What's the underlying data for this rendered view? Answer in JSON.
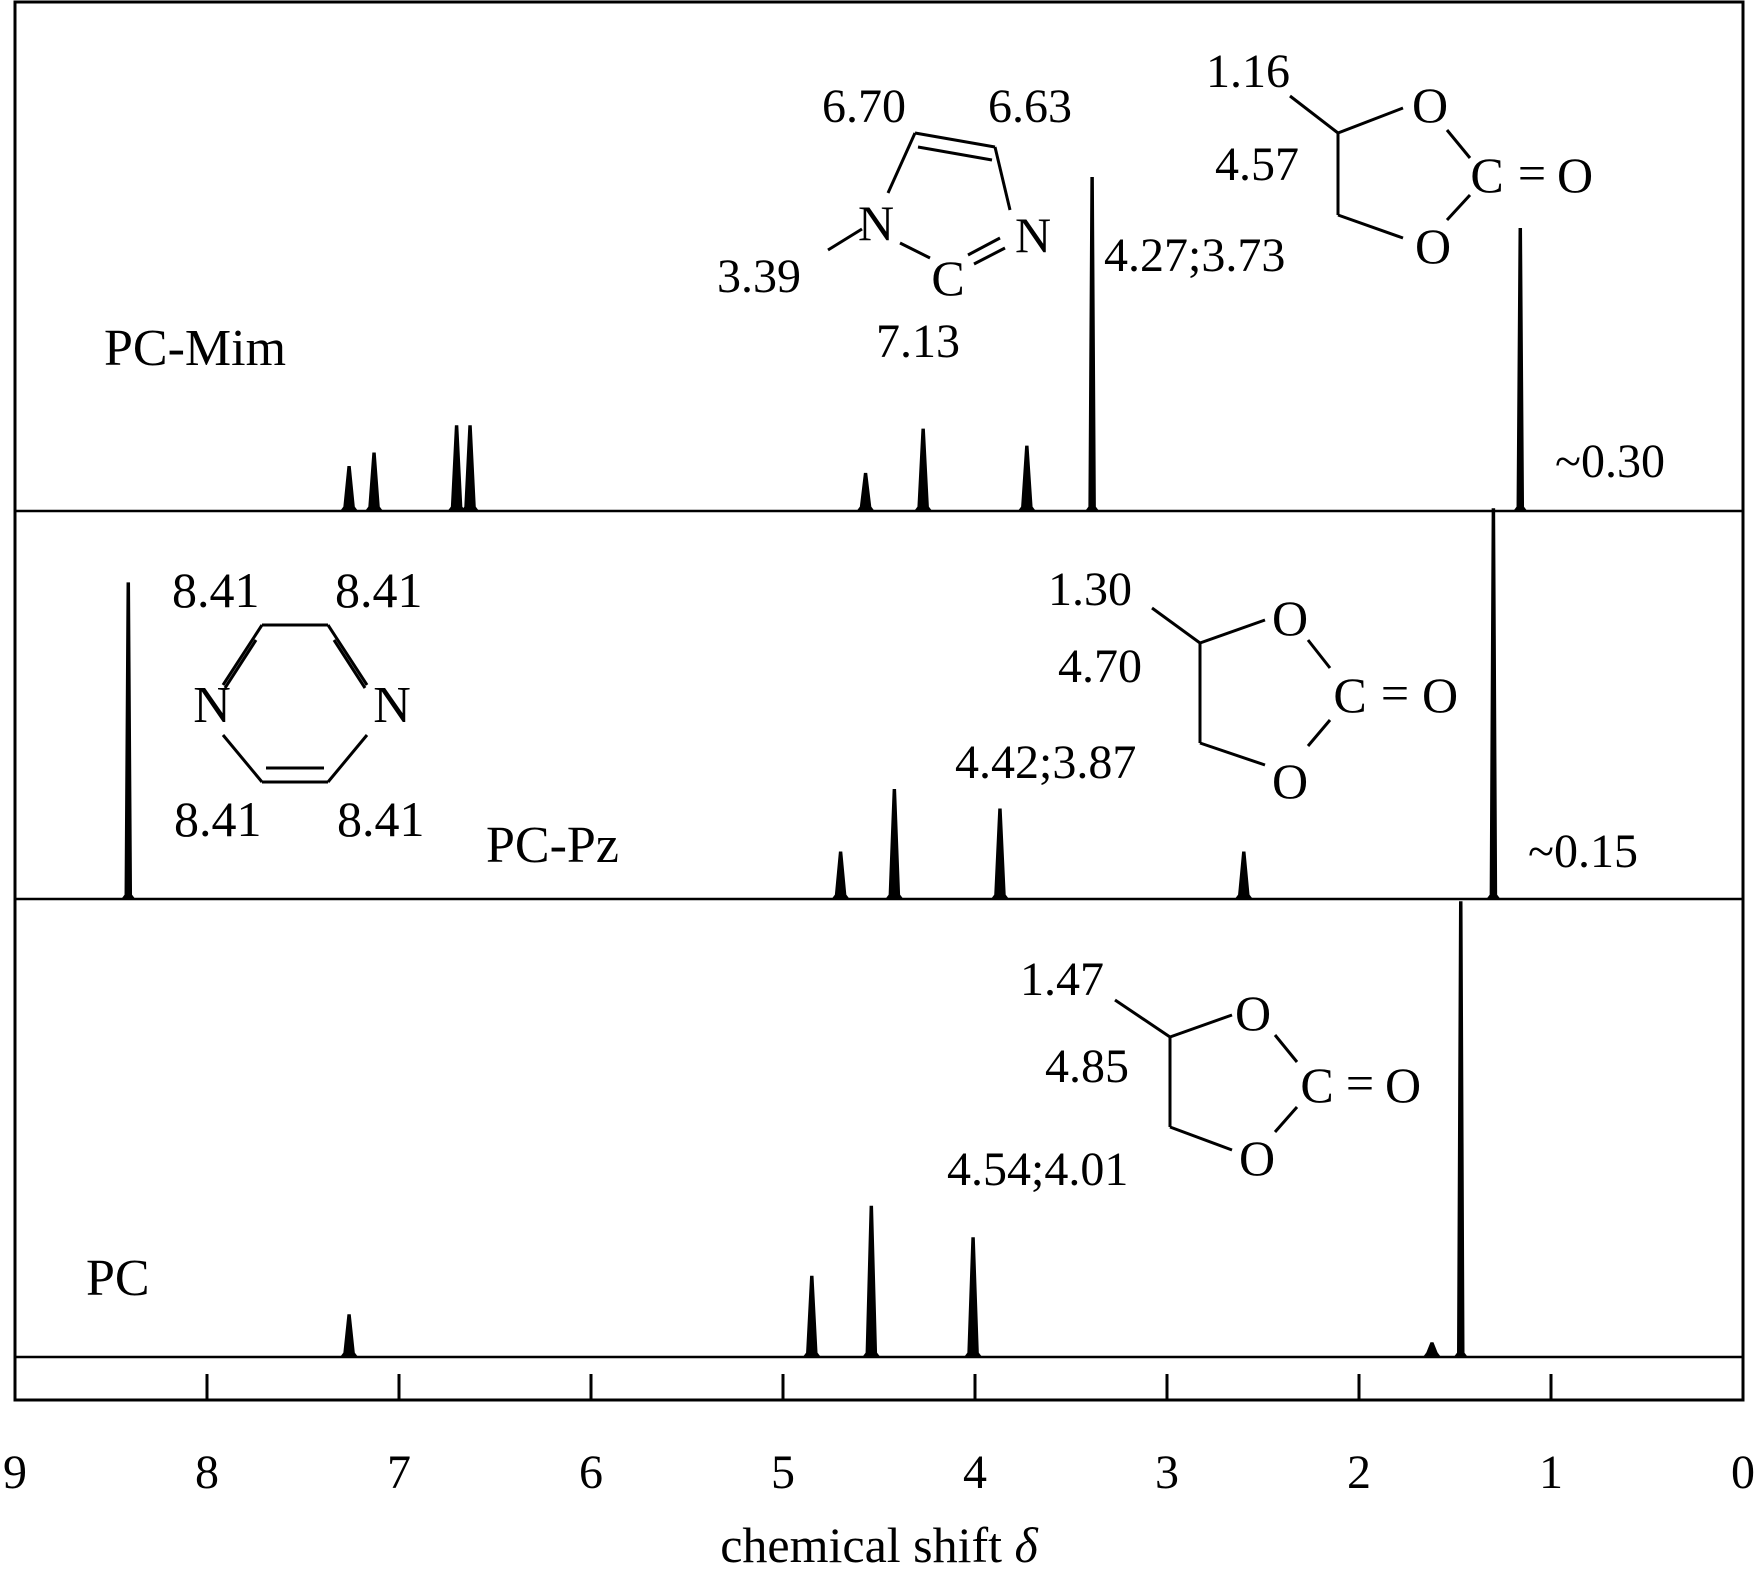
{
  "chart_data": {
    "type": "line",
    "xlabel": "chemical shift δ",
    "xlabel_text": "chemical shift ",
    "xlabel_symbol": "δ",
    "xlim": [
      9,
      0
    ],
    "x_ticks": [
      "9",
      "8",
      "7",
      "6",
      "5",
      "4",
      "3",
      "2",
      "1",
      "0"
    ],
    "grid": false,
    "series": [
      {
        "name": "PC-Mim",
        "peaks": [
          {
            "x": 7.26,
            "h": 0.13
          },
          {
            "x": 7.13,
            "h": 0.17
          },
          {
            "x": 6.7,
            "h": 0.25
          },
          {
            "x": 6.63,
            "h": 0.25
          },
          {
            "x": 4.57,
            "h": 0.11
          },
          {
            "x": 4.27,
            "h": 0.24
          },
          {
            "x": 3.73,
            "h": 0.19
          },
          {
            "x": 3.39,
            "h": 0.98
          },
          {
            "x": 1.16,
            "h": 0.83
          }
        ],
        "offset_label": "~0.30"
      },
      {
        "name": "PC-Pz",
        "peaks": [
          {
            "x": 8.41,
            "h": 0.81
          },
          {
            "x": 4.7,
            "h": 0.12
          },
          {
            "x": 4.42,
            "h": 0.28
          },
          {
            "x": 3.87,
            "h": 0.23
          },
          {
            "x": 2.6,
            "h": 0.12
          },
          {
            "x": 1.3,
            "h": 1.0
          }
        ],
        "offset_label": "~0.15"
      },
      {
        "name": "PC",
        "peaks": [
          {
            "x": 7.26,
            "h": 0.12
          },
          {
            "x": 4.85,
            "h": 0.23
          },
          {
            "x": 4.54,
            "h": 0.43
          },
          {
            "x": 4.01,
            "h": 0.34
          },
          {
            "x": 1.62,
            "h": 0.04
          },
          {
            "x": 1.47,
            "h": 1.3
          }
        ]
      }
    ],
    "annotations": {
      "mim": {
        "h1": "6.70",
        "h2": "6.63",
        "nme": "3.39",
        "c2": "7.13",
        "n1": "N",
        "c": "C",
        "n3": "N"
      },
      "pz": {
        "tl": "8.41",
        "tr": "8.41",
        "bl": "8.41",
        "br": "8.41",
        "nl": "N",
        "nr": "N"
      },
      "pc_mim": {
        "ch3": "1.16",
        "ch": "4.57",
        "ch2": "4.27;3.73",
        "o1": "O",
        "c": "C",
        "eq": "=",
        "o3": "O",
        "o2": "O"
      },
      "pc_pz": {
        "ch3": "1.30",
        "ch": "4.70",
        "ch2": "4.42;3.87",
        "o1": "O",
        "c": "C",
        "eq": "=",
        "o3": "O",
        "o2": "O"
      },
      "pc": {
        "ch3": "1.47",
        "ch": "4.85",
        "ch2": "4.54;4.01",
        "o1": "O",
        "c": "C",
        "eq": "=",
        "o3": "O",
        "o2": "O"
      }
    }
  }
}
